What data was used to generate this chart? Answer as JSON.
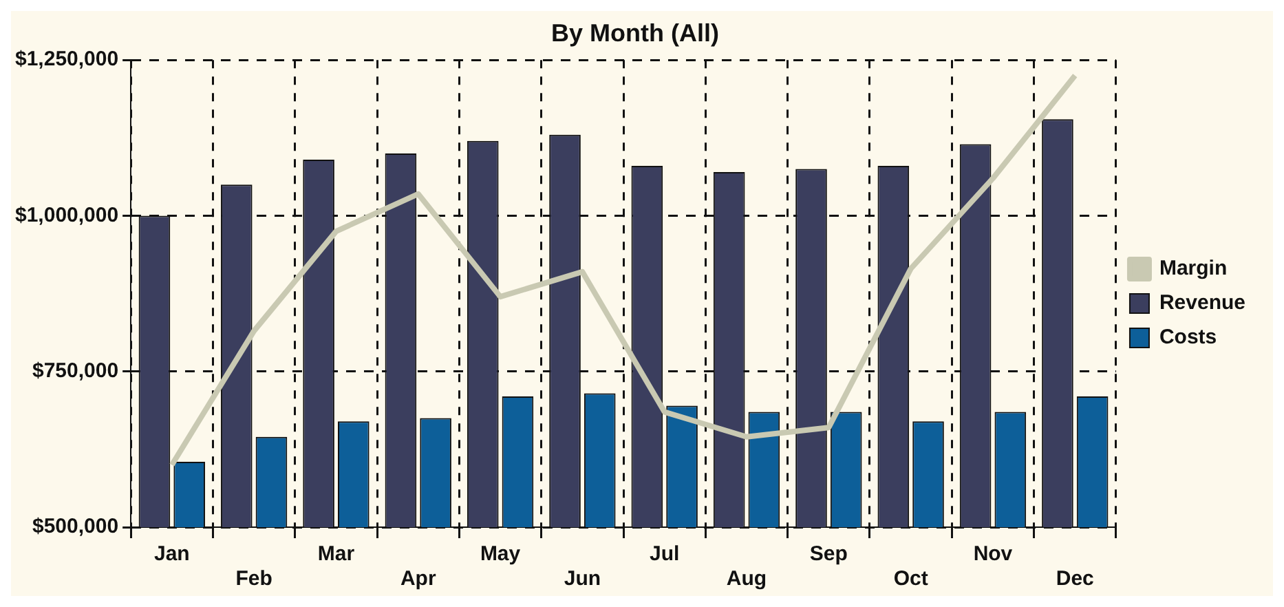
{
  "chart_data": {
    "type": "bar",
    "title": "By Month (All)",
    "categories": [
      "Jan",
      "Feb",
      "Mar",
      "Apr",
      "May",
      "Jun",
      "Jul",
      "Aug",
      "Sep",
      "Oct",
      "Nov",
      "Dec"
    ],
    "series": [
      {
        "name": "Revenue",
        "color": "#3b3e5e",
        "values": [
          1000000,
          1050000,
          1090000,
          1100000,
          1120000,
          1130000,
          1080000,
          1070000,
          1075000,
          1080000,
          1115000,
          1155000
        ]
      },
      {
        "name": "Costs",
        "color": "#0d5f99",
        "values": [
          605000,
          645000,
          670000,
          675000,
          710000,
          715000,
          695000,
          685000,
          685000,
          670000,
          685000,
          710000
        ]
      },
      {
        "name": "Margin",
        "type": "line",
        "color": "#c9c9b2",
        "values": [
          600000,
          815000,
          975000,
          1035000,
          870000,
          910000,
          685000,
          645000,
          660000,
          915000,
          1060000,
          1225000
        ]
      }
    ],
    "ylim": [
      500000,
      1250000
    ],
    "yticks": [
      {
        "value": 500000,
        "label": "$500,000"
      },
      {
        "value": 750000,
        "label": "$750,000"
      },
      {
        "value": 1000000,
        "label": "$1,000,000"
      },
      {
        "value": 1250000,
        "label": "$1,250,000"
      }
    ],
    "grid": true,
    "legend": "right"
  }
}
